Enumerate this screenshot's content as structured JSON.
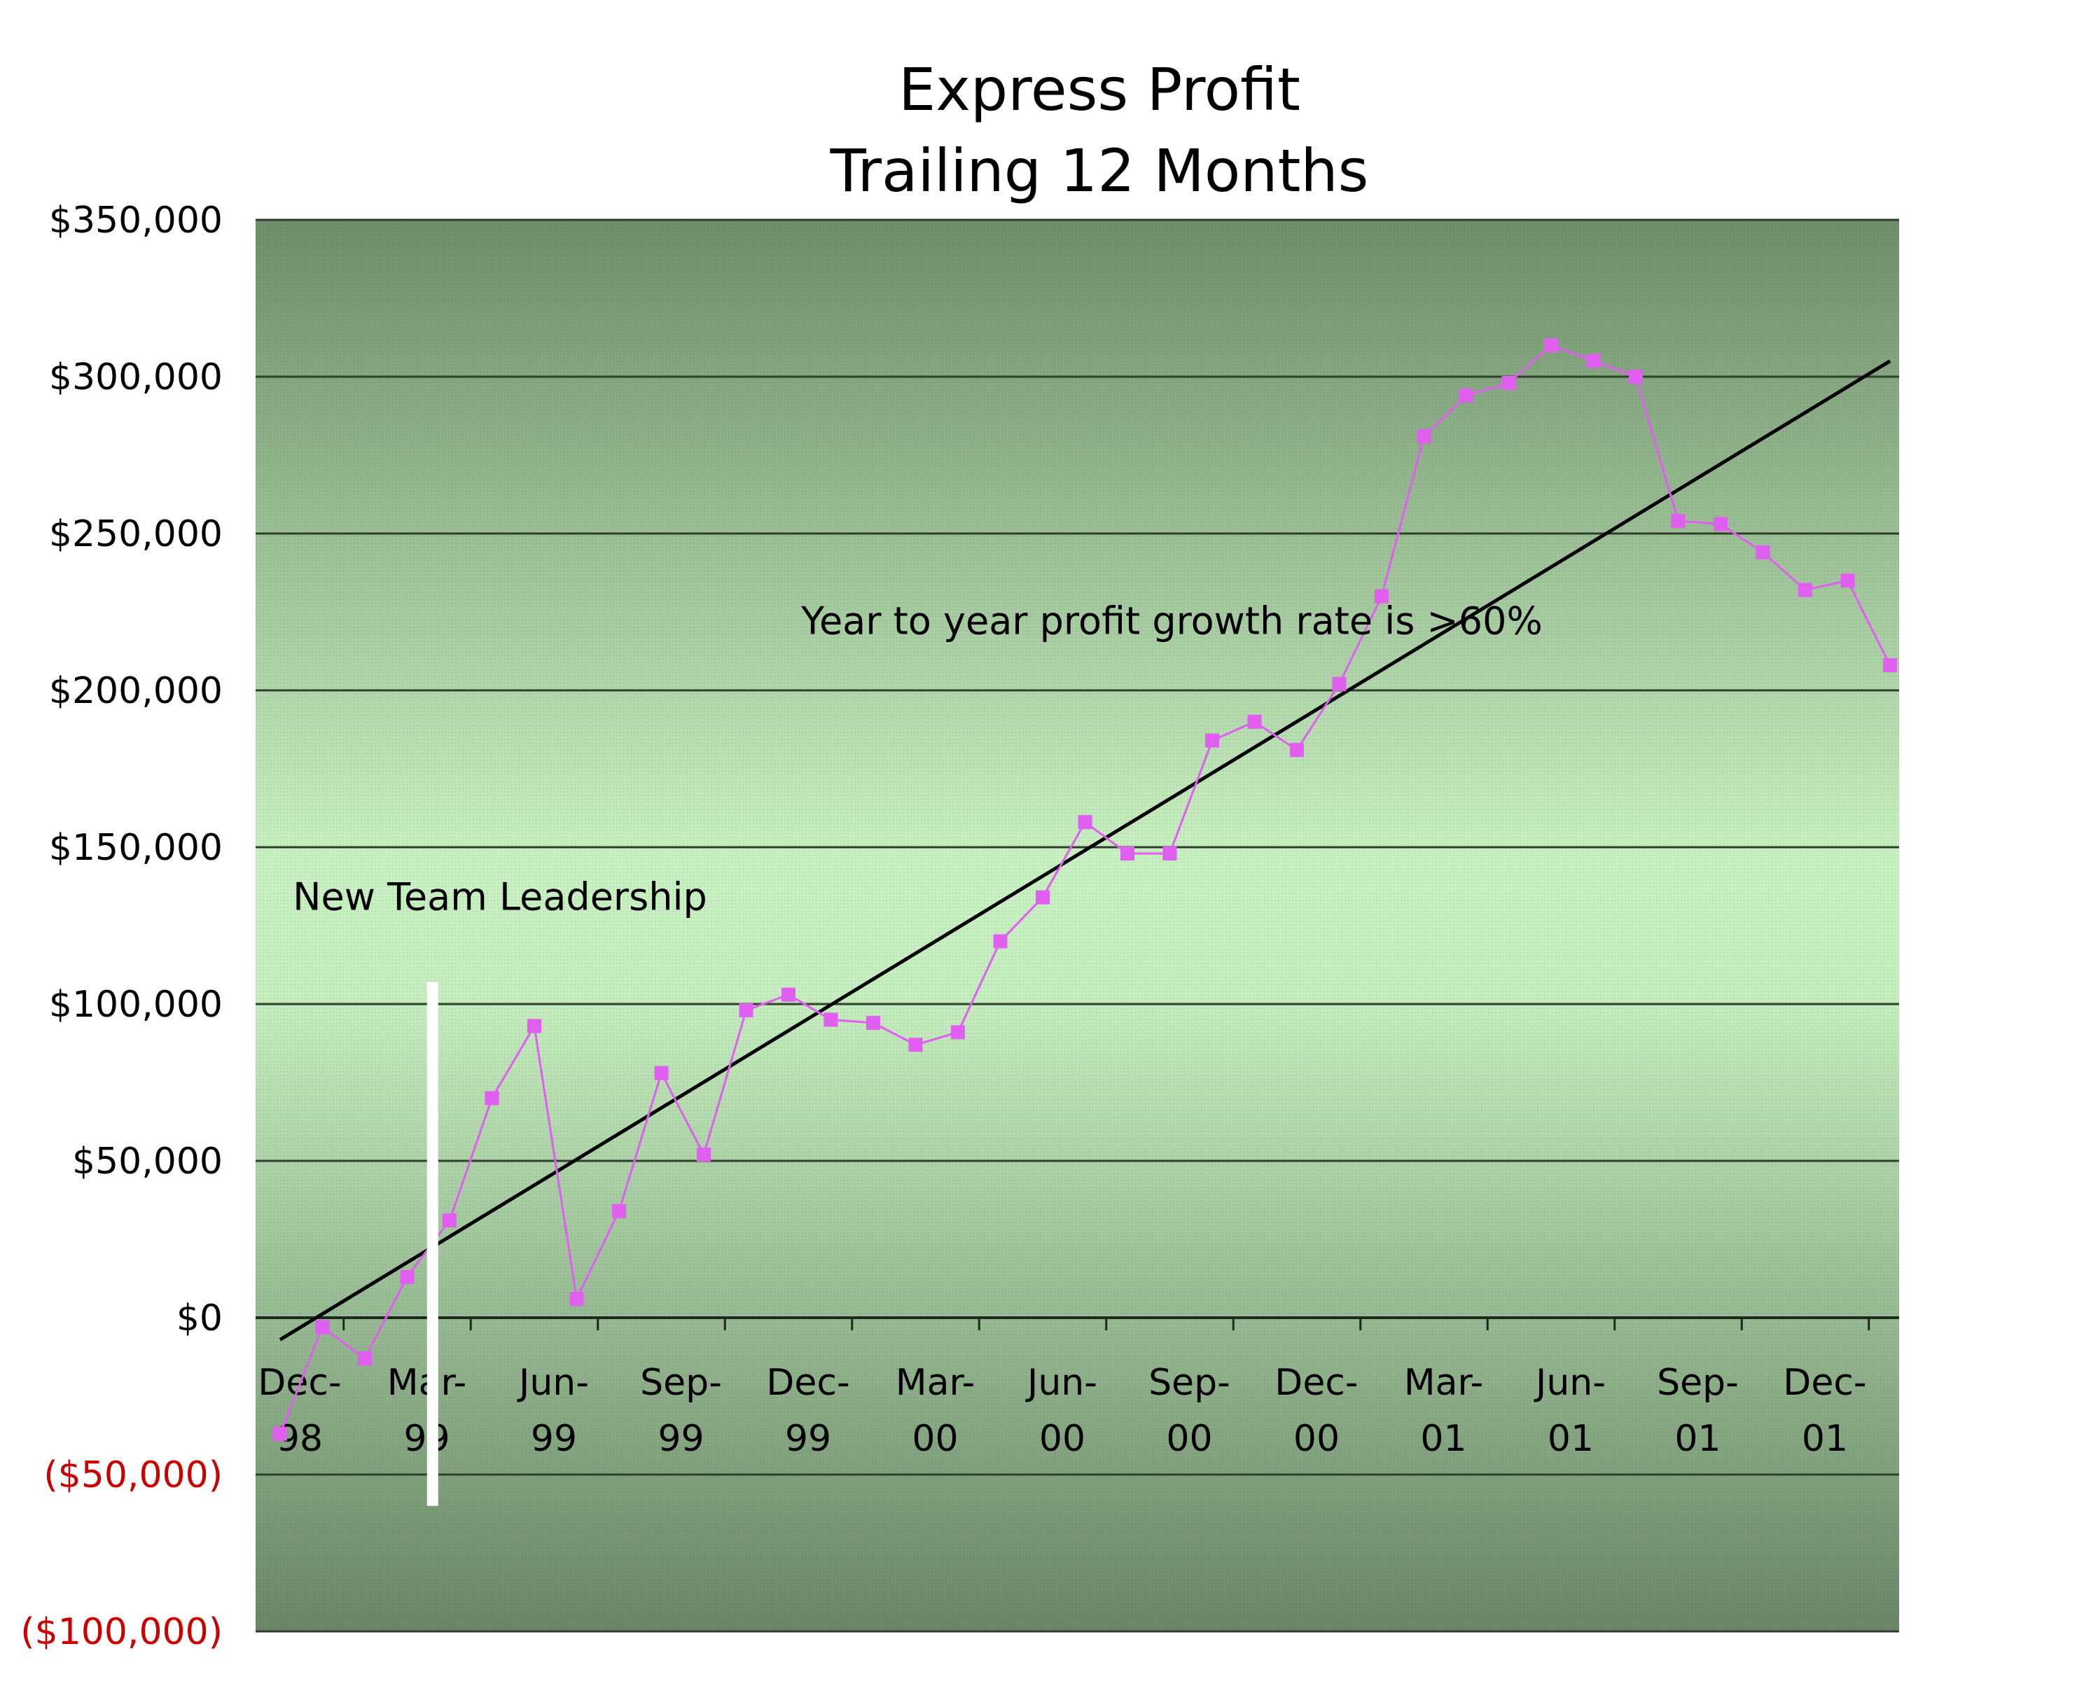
{
  "chart_data": {
    "type": "line",
    "title": [
      "Express Profit",
      "Trailing 12 Months"
    ],
    "xlabel": "",
    "ylabel": "",
    "ylim": [
      -100000,
      350000
    ],
    "y_ticks": [
      {
        "value": 350000,
        "label": "$350,000"
      },
      {
        "value": 300000,
        "label": "$300,000"
      },
      {
        "value": 250000,
        "label": "$250,000"
      },
      {
        "value": 200000,
        "label": "$200,000"
      },
      {
        "value": 150000,
        "label": "$150,000"
      },
      {
        "value": 100000,
        "label": "$100,000"
      },
      {
        "value": 50000,
        "label": "$50,000"
      },
      {
        "value": 0,
        "label": "$0"
      },
      {
        "value": -50000,
        "label": "($50,000)"
      },
      {
        "value": -100000,
        "label": "($100,000)"
      }
    ],
    "x_tick_labels": [
      {
        "index": 0,
        "line1": "Dec-",
        "line2": "98"
      },
      {
        "index": 3,
        "line1": "Mar-",
        "line2": "99"
      },
      {
        "index": 6,
        "line1": "Jun-",
        "line2": "99"
      },
      {
        "index": 9,
        "line1": "Sep-",
        "line2": "99"
      },
      {
        "index": 12,
        "line1": "Dec-",
        "line2": "99"
      },
      {
        "index": 15,
        "line1": "Mar-",
        "line2": "00"
      },
      {
        "index": 18,
        "line1": "Jun-",
        "line2": "00"
      },
      {
        "index": 21,
        "line1": "Sep-",
        "line2": "00"
      },
      {
        "index": 24,
        "line1": "Dec-",
        "line2": "00"
      },
      {
        "index": 27,
        "line1": "Mar-",
        "line2": "01"
      },
      {
        "index": 30,
        "line1": "Jun-",
        "line2": "01"
      },
      {
        "index": 33,
        "line1": "Sep-",
        "line2": "01"
      },
      {
        "index": 36,
        "line1": "Dec-",
        "line2": "01"
      }
    ],
    "categories": [
      "Dec-98",
      "Jan-99",
      "Feb-99",
      "Mar-99",
      "Apr-99",
      "May-99",
      "Jun-99",
      "Jul-99",
      "Aug-99",
      "Sep-99",
      "Oct-99",
      "Nov-99",
      "Dec-99",
      "Jan-00",
      "Feb-00",
      "Mar-00",
      "Apr-00",
      "May-00",
      "Jun-00",
      "Jul-00",
      "Aug-00",
      "Sep-00",
      "Oct-00",
      "Nov-00",
      "Dec-00",
      "Jan-01",
      "Feb-01",
      "Mar-01",
      "Apr-01",
      "May-01",
      "Jun-01",
      "Jul-01",
      "Aug-01",
      "Sep-01",
      "Oct-01",
      "Nov-01",
      "Dec-01",
      "Jan-02",
      "Feb-02"
    ],
    "series": [
      {
        "values": [
          -37000,
          -3000,
          -13000,
          13000,
          31000,
          70000,
          93000,
          6000,
          34000,
          78000,
          52000,
          98000,
          103000,
          95000,
          94000,
          87000,
          91000,
          120000,
          134000,
          158000,
          148000,
          148000,
          184000,
          190000,
          181000,
          202000,
          230000,
          281000,
          294000,
          298000,
          310000,
          305000,
          300000,
          254000,
          253000,
          244000,
          232000,
          235000,
          208000
        ],
        "color": "#e05ef0"
      }
    ],
    "trendline": {
      "start_value": -7000,
      "end_value": 305000,
      "color": "#000000"
    },
    "marker": {
      "index": 3.6,
      "from_value": -60000,
      "to_value": 107000,
      "color": "#ffffff"
    },
    "annotations": [
      {
        "text": "New Team Leadership",
        "x_index": 0.3,
        "y_value": 134000
      },
      {
        "text": "Year to year profit growth rate is >60%",
        "x_index": 12.3,
        "y_value": 222000
      }
    ],
    "grid": true,
    "negative_label_color": "#cc0000",
    "positive_label_color": "#000000",
    "background": "green vertical gradient"
  }
}
